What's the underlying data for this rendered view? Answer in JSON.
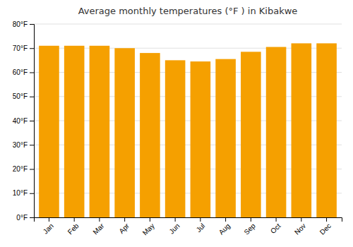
{
  "chart_data": {
    "type": "bar",
    "title": "Average monthly temperatures (°F ) in Kibakwe",
    "categories": [
      "Jan",
      "Feb",
      "Mar",
      "Apr",
      "May",
      "Jun",
      "Jul",
      "Aug",
      "Sep",
      "Oct",
      "Nov",
      "Dec"
    ],
    "values": [
      71.0,
      71.0,
      71.0,
      70.0,
      68.0,
      65.0,
      64.5,
      65.5,
      68.5,
      70.5,
      72.0,
      72.0
    ],
    "color": "#F5A000",
    "ylim": [
      0,
      80
    ],
    "yticks": [
      {
        "value": 0,
        "label": "0°F"
      },
      {
        "value": 10,
        "label": "10°F"
      },
      {
        "value": 20,
        "label": "20°F"
      },
      {
        "value": 30,
        "label": "30°F"
      },
      {
        "value": 40,
        "label": "40°F"
      },
      {
        "value": 50,
        "label": "50°F"
      },
      {
        "value": 60,
        "label": "60°F"
      },
      {
        "value": 70,
        "label": "70°F"
      },
      {
        "value": 80,
        "label": "80°F"
      }
    ],
    "grid": true
  }
}
